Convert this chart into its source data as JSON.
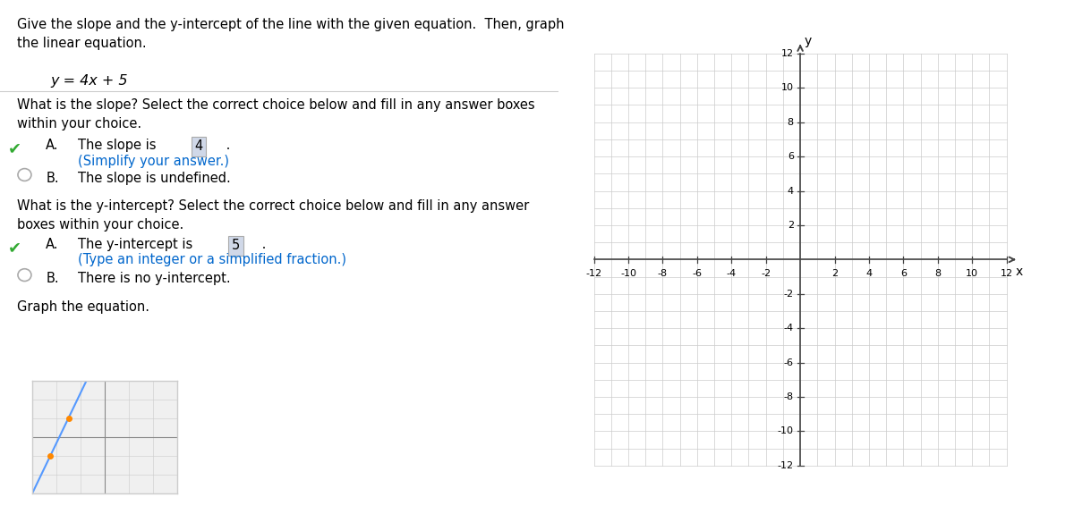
{
  "title_text": "Give the slope and the y-intercept of the line with the given equation.  Then, graph\nthe linear equation.",
  "equation": "y = 4x + 5",
  "slope_question": "What is the slope? Select the correct choice below and fill in any answer boxes\nwithin your choice.",
  "slope_A_prefix": "The slope is ",
  "slope_A_value": "4",
  "slope_A_hint": "(Simplify your answer.)",
  "slope_B": "The slope is undefined.",
  "yint_question": "What is the y-intercept? Select the correct choice below and fill in any answer\nboxes within your choice.",
  "yint_A_prefix": "The y-intercept is ",
  "yint_A_value": "5",
  "yint_A_hint": "(Type an integer or a simplified fraction.)",
  "yint_B": "There is no y-intercept.",
  "graph_label": "Graph the equation.",
  "slope": 4,
  "yintercept": 5,
  "xmin": -12,
  "xmax": 12,
  "ymin": -12,
  "ymax": 12,
  "grid_color": "#cccccc",
  "axis_color": "#444444",
  "background_color": "#ffffff",
  "text_color": "#000000",
  "blue_color": "#5599ff",
  "answer_box_color": "#d0d8e8",
  "hint_color": "#0066cc",
  "check_color": "#33aa33",
  "radio_color": "#aaaaaa",
  "thumb_bg": "#f0f0f0",
  "thumb_line_color": "#888888",
  "thumb_dot_color": "#ff8800"
}
